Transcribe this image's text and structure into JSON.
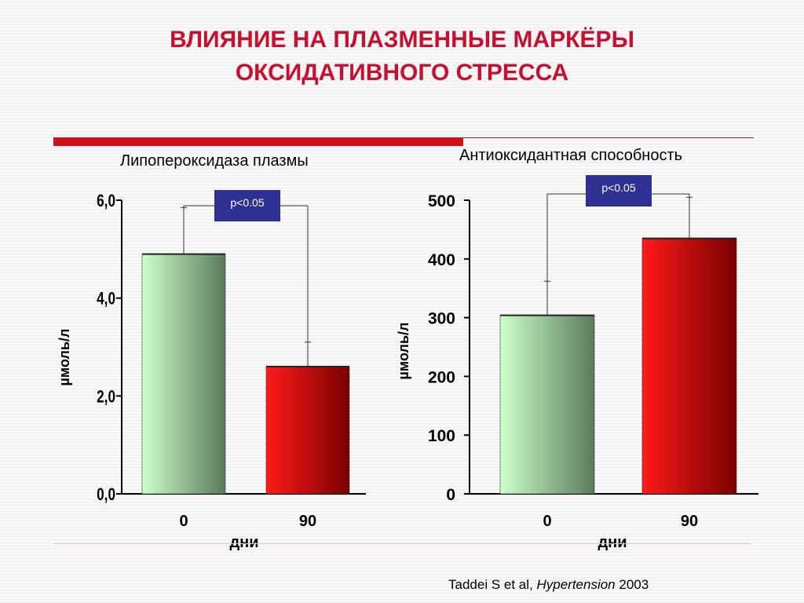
{
  "title": {
    "line1": "ВЛИЯНИЕ НА ПЛАЗМЕННЫЕ МАРКЁРЫ",
    "line2": "ОКСИДАТИВНОГО СТРЕССА"
  },
  "colors": {
    "title": "#c8102e",
    "rule": "#d0101a",
    "pvalue_box": "#2e3192",
    "bar_green_light": "#ccffcc",
    "bar_green_dark": "#5b7a5b",
    "bar_red_light": "#ff1a1a",
    "bar_red_dark": "#7a0000"
  },
  "citation": {
    "author": "Taddei S et al, ",
    "journal": "Hypertension",
    "year": " 2003"
  },
  "chart_data": [
    {
      "type": "bar",
      "title": "Липопероксидаза плазмы",
      "ylabel": "µмоль/л",
      "xlabel": "дни",
      "categories": [
        "0",
        "90"
      ],
      "values": [
        4.9,
        2.6
      ],
      "errors": [
        0.95,
        0.5
      ],
      "ylim": [
        0,
        6
      ],
      "yticks": [
        "0,0",
        "2,0",
        "4,0",
        "6,0"
      ],
      "ytick_values": [
        0,
        2,
        4,
        6
      ],
      "significance": "p<0.05",
      "grid": false,
      "bar_styles": [
        "green",
        "red"
      ]
    },
    {
      "type": "bar",
      "title": "Антиоксидантная способность",
      "ylabel": "µмоль/л",
      "xlabel": "дни",
      "categories": [
        "0",
        "90"
      ],
      "values": [
        304,
        435
      ],
      "errors": [
        58,
        70
      ],
      "ylim": [
        0,
        500
      ],
      "yticks": [
        "0",
        "100",
        "200",
        "300",
        "400",
        "500"
      ],
      "ytick_values": [
        0,
        100,
        200,
        300,
        400,
        500
      ],
      "significance": "p<0.05",
      "grid": false,
      "bar_styles": [
        "green",
        "red"
      ]
    }
  ]
}
